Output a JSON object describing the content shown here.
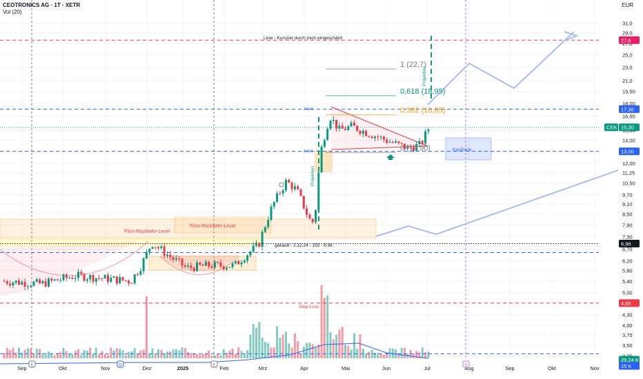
{
  "header": {
    "symbol_line": "CEOTRONICS AG · 1T · XETR",
    "volume_label": "Vol (20)",
    "currency": "EUR"
  },
  "chart_data": {
    "type": "candlestick",
    "title": "CEOTRONICS AG · 1T · XETR",
    "x_ticks": [
      "Sep",
      "Okt",
      "Nov",
      "Dez",
      "2025",
      "Feb",
      "Mrz",
      "Apr",
      "Mai",
      "Jun",
      "Jul",
      "Aug",
      "Sep",
      "Okt",
      "Nov"
    ],
    "y_ticks": [
      "31,0",
      "29,0",
      "27,0",
      "25,0",
      "23,0",
      "21,0",
      "19,50",
      "18,00",
      "16,50",
      "15,00",
      "14,00",
      "13,00",
      "12,00",
      "11,25",
      "10,50",
      "9,70",
      "9,10",
      "8,50",
      "7,90",
      "7,30",
      "6,70",
      "6,20",
      "5,80",
      "5,40",
      "5,00",
      "4,65",
      "4,30",
      "4,00",
      "3,75",
      "3,50",
      "3,25"
    ],
    "y_scale": "log",
    "ylim": [
      3.2,
      33.0
    ],
    "price_badges": [
      {
        "label": "27,6",
        "value": 27.6,
        "color": "#e91e63"
      },
      {
        "label": "17,30",
        "value": 17.3,
        "color": "#2962ff"
      },
      {
        "label": "CEK",
        "value": 15.3,
        "color": "#089981"
      },
      {
        "label": "15,30",
        "value": 15.3,
        "color": "#089981"
      },
      {
        "label": "13,00",
        "value": 13.0,
        "color": "#2962ff"
      },
      {
        "label": "6,96",
        "value": 6.96,
        "color": "#131722"
      },
      {
        "label": "4,65",
        "value": 4.65,
        "color": "#f23645"
      },
      {
        "label": "29,24 K",
        "value": 3.26,
        "color": "#089981"
      },
      {
        "label": "15 K",
        "value": 3.18,
        "color": "#2962ff"
      }
    ],
    "horizontal_lines": [
      {
        "value": 27.6,
        "color": "#f23645",
        "style": "dashed"
      },
      {
        "value": 17.3,
        "color": "#2962ff",
        "style": "dashed"
      },
      {
        "value": 13.0,
        "color": "#2962ff",
        "style": "dashed"
      },
      {
        "value": 6.96,
        "color": "#131722",
        "style": "dotted"
      },
      {
        "value": 6.55,
        "color": "#2962ff",
        "style": "dashed"
      },
      {
        "value": 4.65,
        "color": "#f23645",
        "style": "dashed"
      },
      {
        "value": 3.3,
        "color": "#2962ff",
        "style": "dashed"
      }
    ],
    "fibonacci": [
      {
        "label": "1 (22,7)",
        "value": 22.7,
        "color": "#787b86"
      },
      {
        "label": "0,618 (18,95)",
        "value": 18.95,
        "color": "#089981"
      },
      {
        "label": "0,382 (16,65)",
        "value": 16.65,
        "color": "#ff9800"
      },
      {
        "label": "0 (12,90)",
        "value": 12.9,
        "color": "#787b86"
      }
    ],
    "annotations": [
      "Linie - Kursziel durch mich eingeschätzt",
      "Flinn-Rückkehr-Level",
      "Flinn-Rückkehr-Level",
      "gekauft - 2.12.24 - 150 - 6.96",
      "Stop-Loss",
      "Alert",
      "Alert",
      "Projektion",
      "Projektion",
      "Kaufzone"
    ],
    "series": [
      {
        "name": "Vol (20)",
        "values": []
      }
    ],
    "grid": true,
    "legend": "top-left"
  }
}
